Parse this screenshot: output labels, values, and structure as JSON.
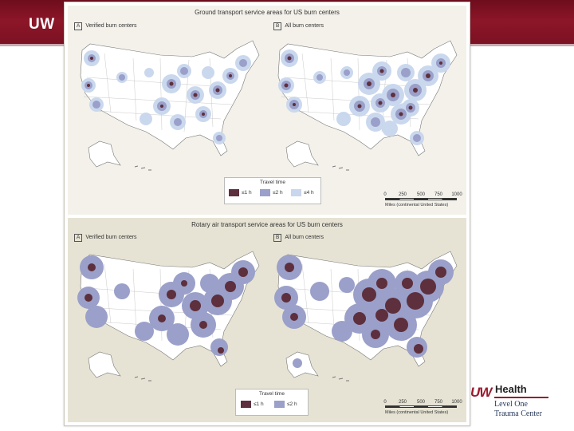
{
  "slide": {
    "header_text": "UW"
  },
  "figure": {
    "ground": {
      "title": "Ground transport service areas for US burn centers",
      "map_a": {
        "letter": "A",
        "label": "Verified burn centers"
      },
      "map_b": {
        "letter": "B",
        "label": "All burn centers"
      },
      "legend": {
        "title": "Travel time",
        "items": [
          {
            "label": "≤1 h",
            "color": "#5e2f3c"
          },
          {
            "label": "≤2 h",
            "color": "#9aa0c9"
          },
          {
            "label": "≤4 h",
            "color": "#c8d6ee"
          }
        ]
      }
    },
    "air": {
      "title": "Rotary air transport service areas for US burn centers",
      "map_a": {
        "letter": "A",
        "label": "Verified burn centers"
      },
      "map_b": {
        "letter": "B",
        "label": "All burn centers"
      },
      "legend": {
        "title": "Travel time",
        "items": [
          {
            "label": "≤1 h",
            "color": "#5e2f3c"
          },
          {
            "label": "≤2 h",
            "color": "#9aa0c9"
          }
        ]
      }
    },
    "scale": {
      "ticks": [
        "0",
        "250",
        "500",
        "750",
        "1000"
      ],
      "caption": "Miles (continental United States)"
    }
  },
  "logo": {
    "uw": "UW",
    "health": "Health",
    "line1": "Level One",
    "line2": "Trauma Center"
  }
}
